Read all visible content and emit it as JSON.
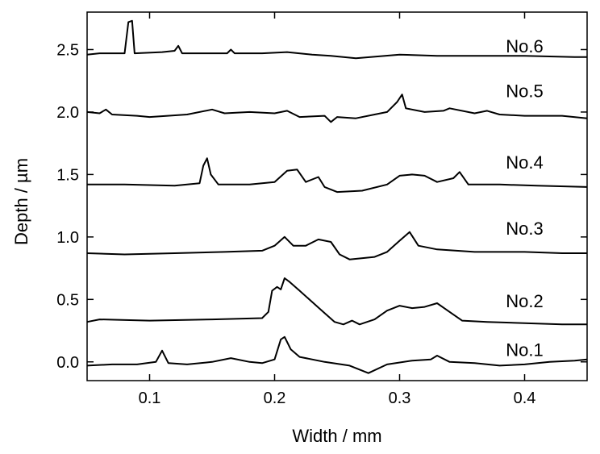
{
  "chart_data": {
    "type": "line",
    "title": "",
    "xlabel": "Width / mm",
    "ylabel": "Depth / µm",
    "xlim": [
      0.05,
      0.45
    ],
    "ylim": [
      -0.15,
      2.8
    ],
    "xticks": [
      0.1,
      0.2,
      0.3,
      0.4
    ],
    "xtick_labels": [
      "0.1",
      "0.2",
      "0.3",
      "0.4"
    ],
    "yticks": [
      0.0,
      0.5,
      1.0,
      1.5,
      2.0,
      2.5
    ],
    "ytick_labels": [
      "0.0",
      "0.5",
      "1.0",
      "1.5",
      "2.0",
      "2.5"
    ],
    "grid": false,
    "line_color": "#000000",
    "series": [
      {
        "name": "No.1",
        "points": [
          [
            0.05,
            -0.03
          ],
          [
            0.07,
            -0.02
          ],
          [
            0.09,
            -0.02
          ],
          [
            0.105,
            0.0
          ],
          [
            0.11,
            0.09
          ],
          [
            0.115,
            -0.01
          ],
          [
            0.13,
            -0.02
          ],
          [
            0.15,
            0.0
          ],
          [
            0.165,
            0.03
          ],
          [
            0.18,
            0.0
          ],
          [
            0.19,
            -0.01
          ],
          [
            0.2,
            0.02
          ],
          [
            0.205,
            0.18
          ],
          [
            0.208,
            0.2
          ],
          [
            0.213,
            0.1
          ],
          [
            0.22,
            0.04
          ],
          [
            0.24,
            0.0
          ],
          [
            0.26,
            -0.03
          ],
          [
            0.275,
            -0.09
          ],
          [
            0.29,
            -0.02
          ],
          [
            0.31,
            0.01
          ],
          [
            0.325,
            0.02
          ],
          [
            0.33,
            0.05
          ],
          [
            0.34,
            0.0
          ],
          [
            0.36,
            -0.01
          ],
          [
            0.38,
            -0.03
          ],
          [
            0.4,
            -0.02
          ],
          [
            0.42,
            0.0
          ],
          [
            0.44,
            0.01
          ],
          [
            0.45,
            0.02
          ]
        ]
      },
      {
        "name": "No.2",
        "points": [
          [
            0.05,
            0.32
          ],
          [
            0.06,
            0.34
          ],
          [
            0.1,
            0.33
          ],
          [
            0.15,
            0.34
          ],
          [
            0.19,
            0.35
          ],
          [
            0.195,
            0.4
          ],
          [
            0.198,
            0.57
          ],
          [
            0.202,
            0.6
          ],
          [
            0.205,
            0.58
          ],
          [
            0.208,
            0.67
          ],
          [
            0.212,
            0.64
          ],
          [
            0.22,
            0.57
          ],
          [
            0.23,
            0.48
          ],
          [
            0.24,
            0.39
          ],
          [
            0.248,
            0.32
          ],
          [
            0.255,
            0.3
          ],
          [
            0.262,
            0.33
          ],
          [
            0.268,
            0.3
          ],
          [
            0.28,
            0.34
          ],
          [
            0.29,
            0.41
          ],
          [
            0.3,
            0.45
          ],
          [
            0.31,
            0.43
          ],
          [
            0.32,
            0.44
          ],
          [
            0.33,
            0.47
          ],
          [
            0.34,
            0.4
          ],
          [
            0.35,
            0.33
          ],
          [
            0.37,
            0.32
          ],
          [
            0.4,
            0.31
          ],
          [
            0.43,
            0.3
          ],
          [
            0.45,
            0.3
          ]
        ]
      },
      {
        "name": "No.3",
        "points": [
          [
            0.05,
            0.87
          ],
          [
            0.08,
            0.86
          ],
          [
            0.12,
            0.87
          ],
          [
            0.16,
            0.88
          ],
          [
            0.19,
            0.89
          ],
          [
            0.2,
            0.93
          ],
          [
            0.208,
            1.0
          ],
          [
            0.215,
            0.93
          ],
          [
            0.225,
            0.93
          ],
          [
            0.235,
            0.98
          ],
          [
            0.245,
            0.96
          ],
          [
            0.252,
            0.86
          ],
          [
            0.26,
            0.82
          ],
          [
            0.28,
            0.84
          ],
          [
            0.29,
            0.88
          ],
          [
            0.3,
            0.97
          ],
          [
            0.308,
            1.04
          ],
          [
            0.315,
            0.93
          ],
          [
            0.33,
            0.9
          ],
          [
            0.36,
            0.88
          ],
          [
            0.4,
            0.88
          ],
          [
            0.43,
            0.87
          ],
          [
            0.45,
            0.87
          ]
        ]
      },
      {
        "name": "No.4",
        "points": [
          [
            0.05,
            1.42
          ],
          [
            0.08,
            1.42
          ],
          [
            0.12,
            1.41
          ],
          [
            0.14,
            1.43
          ],
          [
            0.143,
            1.57
          ],
          [
            0.146,
            1.63
          ],
          [
            0.149,
            1.5
          ],
          [
            0.155,
            1.42
          ],
          [
            0.18,
            1.42
          ],
          [
            0.2,
            1.44
          ],
          [
            0.21,
            1.53
          ],
          [
            0.218,
            1.54
          ],
          [
            0.225,
            1.44
          ],
          [
            0.235,
            1.48
          ],
          [
            0.24,
            1.4
          ],
          [
            0.25,
            1.36
          ],
          [
            0.27,
            1.37
          ],
          [
            0.29,
            1.42
          ],
          [
            0.3,
            1.49
          ],
          [
            0.31,
            1.5
          ],
          [
            0.32,
            1.49
          ],
          [
            0.33,
            1.44
          ],
          [
            0.343,
            1.47
          ],
          [
            0.348,
            1.52
          ],
          [
            0.355,
            1.42
          ],
          [
            0.38,
            1.42
          ],
          [
            0.41,
            1.41
          ],
          [
            0.45,
            1.4
          ]
        ]
      },
      {
        "name": "No.5",
        "points": [
          [
            0.05,
            2.0
          ],
          [
            0.06,
            1.99
          ],
          [
            0.065,
            2.02
          ],
          [
            0.07,
            1.98
          ],
          [
            0.09,
            1.97
          ],
          [
            0.1,
            1.96
          ],
          [
            0.13,
            1.98
          ],
          [
            0.15,
            2.02
          ],
          [
            0.16,
            1.99
          ],
          [
            0.18,
            2.0
          ],
          [
            0.2,
            1.99
          ],
          [
            0.21,
            2.01
          ],
          [
            0.22,
            1.96
          ],
          [
            0.24,
            1.97
          ],
          [
            0.245,
            1.92
          ],
          [
            0.25,
            1.96
          ],
          [
            0.265,
            1.95
          ],
          [
            0.28,
            1.98
          ],
          [
            0.29,
            2.0
          ],
          [
            0.298,
            2.08
          ],
          [
            0.302,
            2.14
          ],
          [
            0.305,
            2.03
          ],
          [
            0.32,
            2.0
          ],
          [
            0.335,
            2.01
          ],
          [
            0.34,
            2.03
          ],
          [
            0.36,
            1.99
          ],
          [
            0.37,
            2.01
          ],
          [
            0.38,
            1.98
          ],
          [
            0.4,
            1.97
          ],
          [
            0.43,
            1.97
          ],
          [
            0.45,
            1.95
          ]
        ]
      },
      {
        "name": "No.6",
        "points": [
          [
            0.05,
            2.46
          ],
          [
            0.06,
            2.47
          ],
          [
            0.08,
            2.47
          ],
          [
            0.083,
            2.72
          ],
          [
            0.086,
            2.73
          ],
          [
            0.088,
            2.47
          ],
          [
            0.11,
            2.48
          ],
          [
            0.12,
            2.49
          ],
          [
            0.123,
            2.53
          ],
          [
            0.126,
            2.47
          ],
          [
            0.15,
            2.47
          ],
          [
            0.162,
            2.47
          ],
          [
            0.165,
            2.5
          ],
          [
            0.168,
            2.47
          ],
          [
            0.19,
            2.47
          ],
          [
            0.21,
            2.48
          ],
          [
            0.23,
            2.46
          ],
          [
            0.245,
            2.45
          ],
          [
            0.265,
            2.43
          ],
          [
            0.3,
            2.46
          ],
          [
            0.33,
            2.45
          ],
          [
            0.36,
            2.45
          ],
          [
            0.4,
            2.45
          ],
          [
            0.44,
            2.44
          ],
          [
            0.45,
            2.44
          ]
        ]
      }
    ],
    "series_labels": [
      {
        "text": "No.1",
        "x": 0.385,
        "y": 0.1
      },
      {
        "text": "No.2",
        "x": 0.385,
        "y": 0.49
      },
      {
        "text": "No.3",
        "x": 0.385,
        "y": 1.07
      },
      {
        "text": "No.4",
        "x": 0.385,
        "y": 1.6
      },
      {
        "text": "No.5",
        "x": 0.385,
        "y": 2.17
      },
      {
        "text": "No.6",
        "x": 0.385,
        "y": 2.53
      }
    ]
  }
}
